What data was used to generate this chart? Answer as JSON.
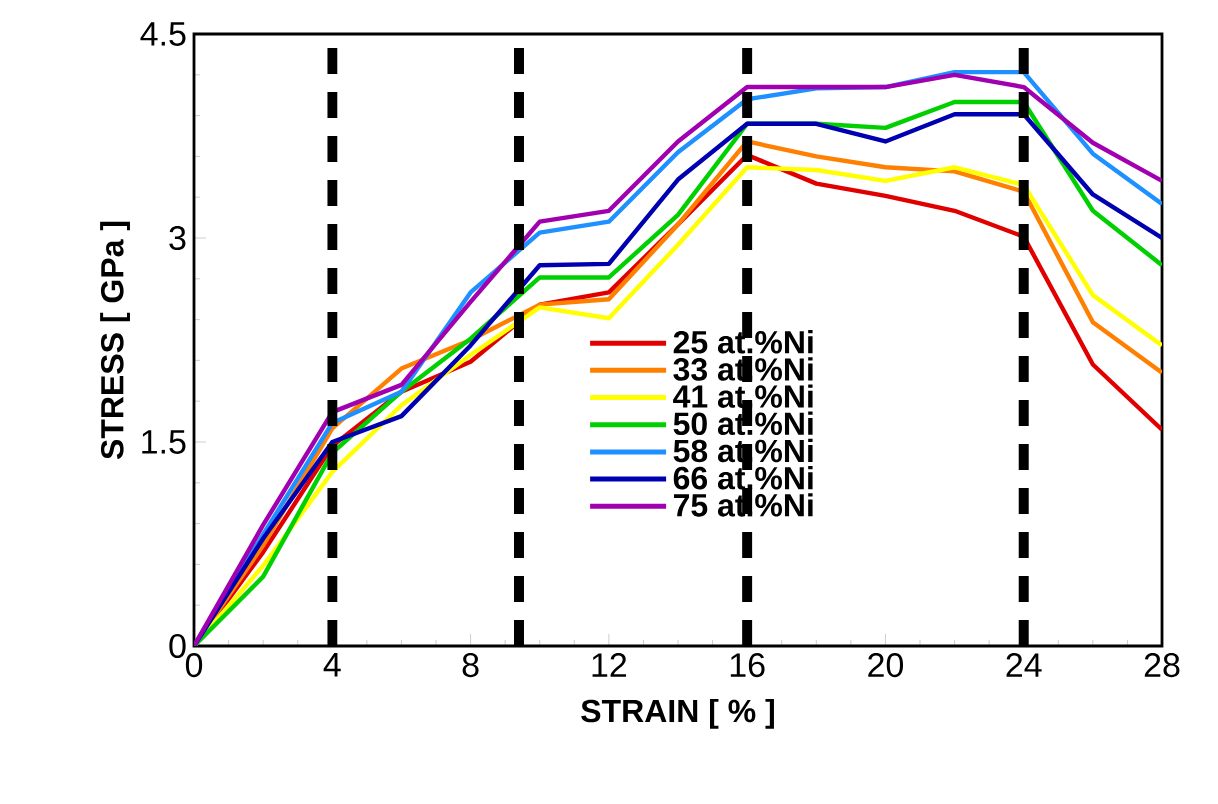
{
  "chart_data": {
    "type": "line",
    "xlabel": "STRAIN [ % ]",
    "ylabel": "STRESS [ GPa ]",
    "x": [
      0,
      2,
      4,
      6,
      8,
      10,
      12,
      14,
      16,
      18,
      20,
      22,
      24,
      26,
      28
    ],
    "xlim": [
      0,
      28
    ],
    "xticks": [
      0,
      4,
      8,
      12,
      16,
      20,
      24,
      28
    ],
    "ylim": [
      0,
      4.5
    ],
    "yticks": [
      0,
      1.5,
      3,
      4.5
    ],
    "legend": "bottom right",
    "grid": false,
    "marker": "none",
    "line_style": "solid",
    "series": [
      {
        "name": "25 at.%Ni",
        "color": "#e00000",
        "values": [
          0,
          0.69,
          1.47,
          1.87,
          2.09,
          2.51,
          2.6,
          3.1,
          3.61,
          3.4,
          3.31,
          3.2,
          3.01,
          2.07,
          1.59
        ]
      },
      {
        "name": "33 at.%Ni",
        "color": "#ff7f00",
        "values": [
          0,
          0.74,
          1.6,
          2.04,
          2.25,
          2.51,
          2.55,
          3.1,
          3.71,
          3.6,
          3.52,
          3.49,
          3.34,
          2.38,
          2.01
        ]
      },
      {
        "name": "41 at.%Ni",
        "color": "#ffff00",
        "values": [
          0,
          0.59,
          1.28,
          1.77,
          2.14,
          2.49,
          2.41,
          2.95,
          3.52,
          3.5,
          3.42,
          3.52,
          3.39,
          2.58,
          2.21
        ]
      },
      {
        "name": "50 at.%Ni",
        "color": "#00d000",
        "values": [
          0,
          0.51,
          1.42,
          1.87,
          2.26,
          2.71,
          2.71,
          3.17,
          3.84,
          3.84,
          3.81,
          4.0,
          4.0,
          3.2,
          2.8
        ]
      },
      {
        "name": "58 at.%Ni",
        "color": "#1e90ff",
        "values": [
          0,
          0.82,
          1.64,
          1.87,
          2.6,
          3.04,
          3.12,
          3.63,
          4.02,
          4.1,
          4.11,
          4.22,
          4.22,
          3.62,
          3.25
        ]
      },
      {
        "name": "66 at.%Ni",
        "color": "#0000b0",
        "values": [
          0,
          0.79,
          1.5,
          1.69,
          2.21,
          2.8,
          2.81,
          3.43,
          3.84,
          3.84,
          3.71,
          3.91,
          3.91,
          3.32,
          3.0
        ]
      },
      {
        "name": "75 at.%Ni",
        "color": "#a000b0",
        "values": [
          0,
          0.89,
          1.72,
          1.92,
          2.53,
          3.12,
          3.2,
          3.71,
          4.11,
          4.11,
          4.11,
          4.2,
          4.11,
          3.7,
          3.42
        ]
      }
    ],
    "ref_lines": [
      {
        "axis": "x",
        "value": 4,
        "color": "#000000",
        "line_style": "dashed"
      },
      {
        "axis": "x",
        "value": 9.4,
        "color": "#000000",
        "line_style": "dashed"
      },
      {
        "axis": "x",
        "value": 16,
        "color": "#000000",
        "line_style": "dashed"
      },
      {
        "axis": "x",
        "value": 24,
        "color": "#000000",
        "line_style": "dashed"
      }
    ]
  }
}
